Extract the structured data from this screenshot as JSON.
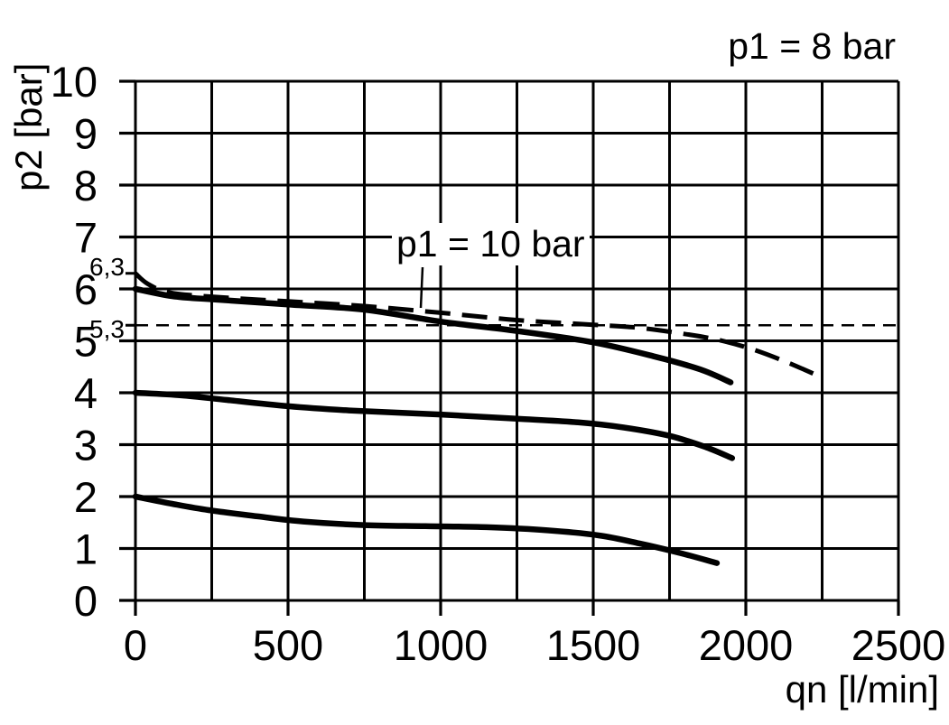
{
  "colors": {
    "ink": "#000000",
    "background": "#ffffff"
  },
  "chart_data": {
    "type": "line",
    "title": "",
    "xlabel": "qn [l/min]",
    "ylabel": "p2 [bar]",
    "xlim": [
      0,
      2500
    ],
    "ylim": [
      0,
      10
    ],
    "x_ticks": [
      0,
      500,
      1000,
      1500,
      2000,
      2500
    ],
    "x_grid_step": 250,
    "y_ticks": [
      0,
      1,
      2,
      3,
      4,
      5,
      6,
      7,
      8,
      9,
      10
    ],
    "y_grid_step": 1,
    "y_special_ticks": [
      {
        "label": "6,3",
        "value": 6.3
      },
      {
        "label": "5,3",
        "value": 5.3
      }
    ],
    "grid": true,
    "legend_position": "none",
    "annotations": [
      {
        "text": "p1 = 8 bar",
        "position": "top-right"
      },
      {
        "text": "p1 = 10 bar",
        "position": "inside-plot",
        "pointer_to": [
          940,
          5.6
        ]
      }
    ],
    "series": [
      {
        "name": "p1 = 10 bar",
        "style": "dashed",
        "weight": "thick",
        "points": [
          [
            0,
            6.3
          ],
          [
            40,
            6.1
          ],
          [
            110,
            5.93
          ],
          [
            250,
            5.85
          ],
          [
            500,
            5.76
          ],
          [
            750,
            5.67
          ],
          [
            1000,
            5.54
          ],
          [
            1250,
            5.4
          ],
          [
            1500,
            5.31
          ],
          [
            1650,
            5.25
          ],
          [
            1780,
            5.15
          ],
          [
            1900,
            5.03
          ],
          [
            2015,
            4.85
          ],
          [
            2130,
            4.6
          ],
          [
            2240,
            4.32
          ]
        ]
      },
      {
        "name": "p1 = 8 bar (upper curve, 6 bar at zero flow)",
        "style": "solid",
        "weight": "thick",
        "points": [
          [
            0,
            6.0
          ],
          [
            120,
            5.86
          ],
          [
            250,
            5.8
          ],
          [
            500,
            5.7
          ],
          [
            750,
            5.6
          ],
          [
            1000,
            5.37
          ],
          [
            1250,
            5.19
          ],
          [
            1500,
            4.97
          ],
          [
            1700,
            4.7
          ],
          [
            1850,
            4.45
          ],
          [
            1950,
            4.2
          ]
        ]
      },
      {
        "name": "p1 = 8 bar (middle curve, 4 bar at zero flow)",
        "style": "solid",
        "weight": "thick",
        "points": [
          [
            0,
            4.0
          ],
          [
            150,
            3.95
          ],
          [
            300,
            3.86
          ],
          [
            500,
            3.74
          ],
          [
            700,
            3.66
          ],
          [
            1000,
            3.58
          ],
          [
            1250,
            3.5
          ],
          [
            1450,
            3.43
          ],
          [
            1600,
            3.33
          ],
          [
            1750,
            3.17
          ],
          [
            1870,
            2.95
          ],
          [
            1955,
            2.74
          ]
        ]
      },
      {
        "name": "p1 = 8 bar (lower curve, 2 bar at zero flow)",
        "style": "solid",
        "weight": "thick",
        "points": [
          [
            0,
            2.0
          ],
          [
            120,
            1.86
          ],
          [
            240,
            1.74
          ],
          [
            400,
            1.62
          ],
          [
            550,
            1.52
          ],
          [
            750,
            1.45
          ],
          [
            950,
            1.43
          ],
          [
            1150,
            1.41
          ],
          [
            1350,
            1.35
          ],
          [
            1520,
            1.25
          ],
          [
            1650,
            1.1
          ],
          [
            1780,
            0.92
          ],
          [
            1905,
            0.72
          ]
        ]
      },
      {
        "name": "5,3 bar reference line",
        "style": "dashed",
        "weight": "thin",
        "points": [
          [
            0,
            5.3
          ],
          [
            2500,
            5.3
          ]
        ]
      }
    ]
  }
}
